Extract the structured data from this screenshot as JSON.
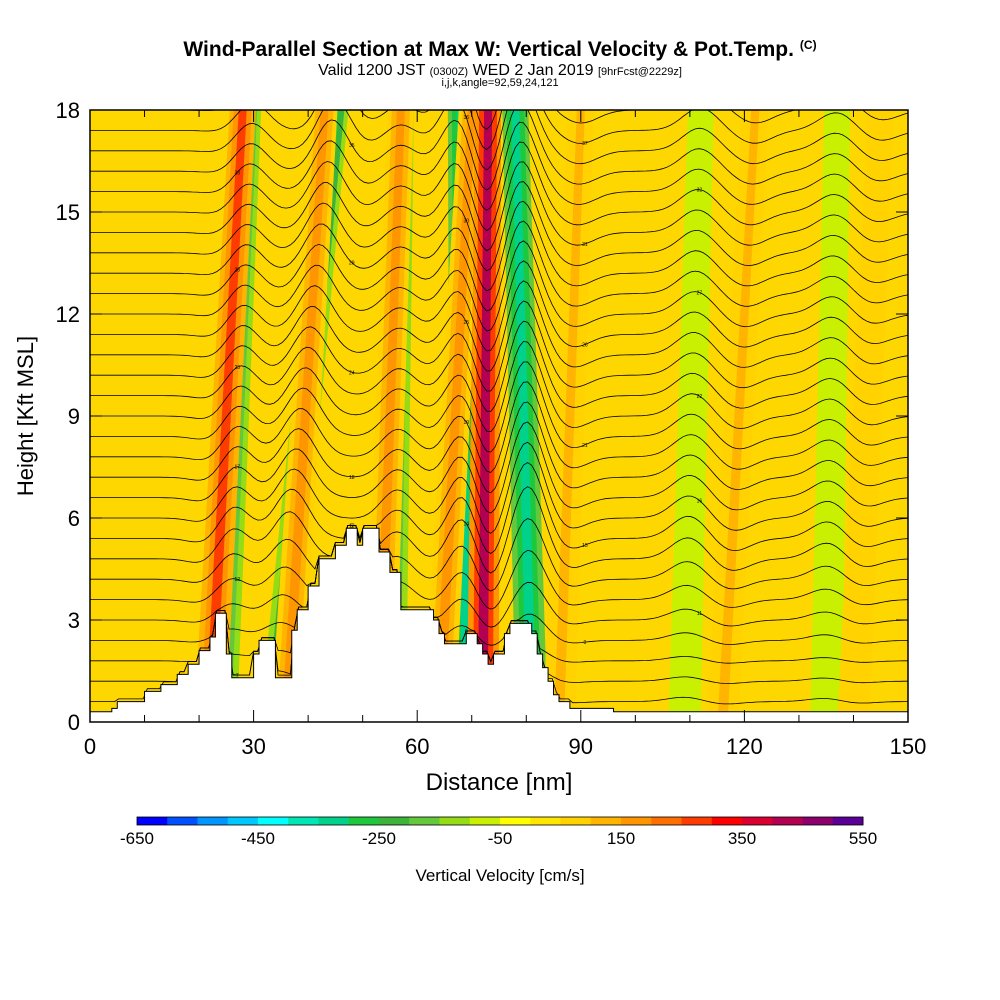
{
  "header": {
    "title": "Wind-Parallel Section at Max W: Vertical Velocity & Pot.Temp.",
    "copyright": "(C)",
    "valid_prefix": "Valid 1200 JST",
    "valid_utc": "(0300Z)",
    "valid_date": "WED 2 Jan 2019",
    "forecast": "[9hrFcst@2229z]",
    "indices": "i,j,k,angle=92,59,24,121"
  },
  "colorbar": {
    "label": "Vertical Velocity [cm/s]",
    "tick_labels": [
      "-650",
      "-450",
      "-250",
      "-50",
      "150",
      "350",
      "550"
    ],
    "colors": [
      "#0000ff",
      "#0050ff",
      "#0096ff",
      "#00c8ff",
      "#00ffff",
      "#00e6b4",
      "#00d28c",
      "#1ec83c",
      "#3cb43c",
      "#64c83c",
      "#96dc14",
      "#c8f000",
      "#ffff00",
      "#ffe600",
      "#ffd200",
      "#ffb400",
      "#ff9600",
      "#ff6e00",
      "#ff3c00",
      "#ff0000",
      "#dc0032",
      "#b40050",
      "#8c006e",
      "#5a0096"
    ]
  },
  "chart_data": {
    "type": "heatmap",
    "title": "Wind-Parallel Section at Max W: Vertical Velocity & Pot.Temp.",
    "xlabel": "Distance [nm]",
    "ylabel": "Height [Kft MSL]",
    "xlim": [
      0,
      150
    ],
    "ylim": [
      0,
      18
    ],
    "x_ticks": [
      0,
      30,
      60,
      90,
      120,
      150
    ],
    "y_ticks": [
      0,
      3,
      6,
      9,
      12,
      15,
      18
    ],
    "colorbar_range": [
      -650,
      550
    ],
    "colorbar_ticks": [
      -650,
      -450,
      -250,
      -50,
      150,
      350,
      550
    ],
    "background_color": "#ffd700",
    "updraft_bands": [
      {
        "x_bottom": 22,
        "x_top": 28,
        "value": 250
      },
      {
        "x_bottom": 36,
        "x_top": 43,
        "value": 150
      },
      {
        "x_bottom": 53,
        "x_top": 57,
        "value": 150
      },
      {
        "x_bottom": 64,
        "x_top": 70,
        "value": 150
      },
      {
        "x_bottom": 72,
        "x_top": 73,
        "value": 400
      },
      {
        "x_bottom": 86,
        "x_top": 90,
        "value": 100
      },
      {
        "x_bottom": 116,
        "x_top": 122,
        "value": 100
      },
      {
        "x_bottom": 140,
        "x_top": 145,
        "value": 80
      }
    ],
    "downdraft_bands": [
      {
        "x_bottom": 24,
        "x_top": 29,
        "value": -250
      },
      {
        "x_bottom": 34,
        "x_top": 45,
        "value": -300
      },
      {
        "x_bottom": 55,
        "x_top": 57,
        "value": -200
      },
      {
        "x_bottom": 69,
        "x_top": 68,
        "value": -350
      },
      {
        "x_bottom": 81,
        "x_top": 78,
        "value": -350
      },
      {
        "x_bottom": 109,
        "x_top": 112,
        "value": -100
      },
      {
        "x_bottom": 135,
        "x_top": 137,
        "value": -80
      }
    ],
    "terrain": [
      [
        0,
        0.3
      ],
      [
        4,
        0.4
      ],
      [
        5,
        0.6
      ],
      [
        9,
        0.6
      ],
      [
        10,
        0.9
      ],
      [
        12,
        0.9
      ],
      [
        13,
        1.1
      ],
      [
        15,
        1.1
      ],
      [
        16,
        1.4
      ],
      [
        17,
        1.4
      ],
      [
        18,
        1.7
      ],
      [
        19,
        1.7
      ],
      [
        20,
        2.1
      ],
      [
        21,
        2.1
      ],
      [
        22,
        2.5
      ],
      [
        23,
        3.2
      ],
      [
        24,
        3.2
      ],
      [
        25,
        2.0
      ],
      [
        26,
        1.3
      ],
      [
        29,
        1.3
      ],
      [
        30,
        2.0
      ],
      [
        31,
        2.4
      ],
      [
        33,
        2.4
      ],
      [
        34,
        1.3
      ],
      [
        36,
        1.3
      ],
      [
        37,
        2.7
      ],
      [
        38,
        3.3
      ],
      [
        40,
        4.0
      ],
      [
        42,
        4.8
      ],
      [
        45,
        5.2
      ],
      [
        47,
        5.7
      ],
      [
        48,
        5.7
      ],
      [
        49,
        5.2
      ],
      [
        50,
        5.7
      ],
      [
        52,
        5.7
      ],
      [
        53,
        5.0
      ],
      [
        55,
        4.4
      ],
      [
        57,
        3.3
      ],
      [
        62,
        3.3
      ],
      [
        63,
        3.0
      ],
      [
        64,
        2.6
      ],
      [
        65,
        2.3
      ],
      [
        69,
        2.6
      ],
      [
        71,
        2.3
      ],
      [
        72,
        2.0
      ],
      [
        73,
        1.7
      ],
      [
        74,
        2.0
      ],
      [
        76,
        2.6
      ],
      [
        77,
        2.9
      ],
      [
        80,
        2.9
      ],
      [
        81,
        2.6
      ],
      [
        82,
        2.0
      ],
      [
        83,
        1.6
      ],
      [
        84,
        1.2
      ],
      [
        85,
        0.8
      ],
      [
        86,
        0.6
      ],
      [
        88,
        0.4
      ],
      [
        96,
        0.3
      ],
      [
        150,
        0.3
      ]
    ],
    "contour_count": 31,
    "isentrope_values": [
      "7",
      "5",
      "8",
      "9",
      "11",
      "12",
      "13",
      "14",
      "15",
      "16",
      "17",
      "18",
      "19",
      "21",
      "22",
      "23",
      "24",
      "25",
      "26",
      "27",
      "28",
      "29",
      "30",
      "31",
      "32",
      "33",
      "35",
      "36",
      "37",
      "38",
      "39"
    ]
  }
}
